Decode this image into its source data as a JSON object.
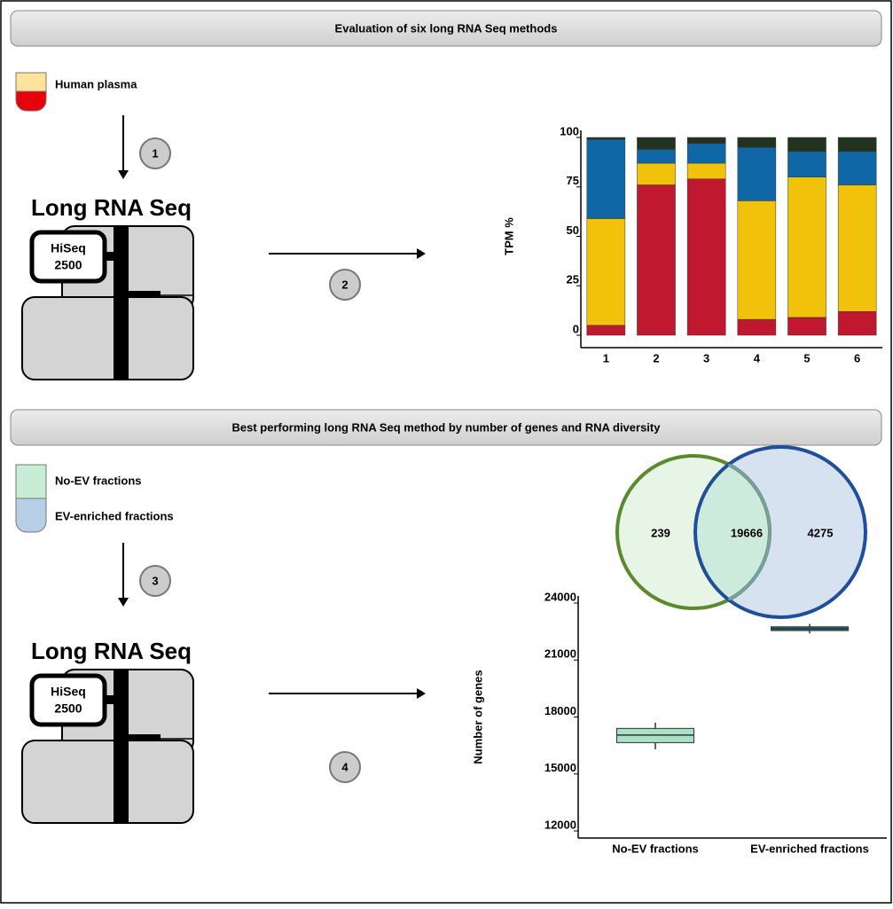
{
  "sections": [
    {
      "title": "Evaluation of six long RNA Seq methods"
    },
    {
      "title": "Best performing long RNA Seq method by number of genes and RNA diversity"
    }
  ],
  "panel1": {
    "sample_label": "Human plasma",
    "steps": [
      "1",
      "2"
    ],
    "method_title": "Long RNA Seq",
    "instrument": [
      "HiSeq",
      "2500"
    ]
  },
  "panel2": {
    "sample_labels": [
      "No-EV fractions",
      "EV-enriched fractions"
    ],
    "steps": [
      "3",
      "4"
    ],
    "method_title": "Long RNA Seq",
    "instrument": [
      "HiSeq",
      "2500"
    ]
  },
  "venn": {
    "counts": [
      "239",
      "19666",
      "4275"
    ],
    "colors": [
      "#5a8a2c",
      "#1f4e9a"
    ]
  },
  "chart_data": [
    {
      "type": "bar",
      "stacked": true,
      "y_label": "TPM %",
      "categories": [
        "1",
        "2",
        "3",
        "4",
        "5",
        "6"
      ],
      "series": [
        {
          "color": "#c0182f",
          "values": [
            5,
            76,
            79,
            8,
            9,
            12
          ]
        },
        {
          "color": "#f0c20a",
          "values": [
            54,
            11,
            8,
            60,
            71,
            64
          ]
        },
        {
          "color": "#0f67a6",
          "values": [
            40,
            7,
            10,
            27,
            13,
            17
          ]
        },
        {
          "color": "#22331f",
          "values": [
            1,
            6,
            3,
            5,
            7,
            7
          ]
        }
      ],
      "ylim": [
        0,
        100
      ],
      "yticks": [
        0,
        25,
        50,
        75,
        100
      ]
    },
    {
      "type": "box",
      "y_label": "Number of genes",
      "categories": [
        "No-EV fractions",
        "EV-enriched fractions"
      ],
      "boxes": [
        {
          "color": "#a8e0c8",
          "whisker_low": 16300,
          "q1": 16650,
          "median": 17050,
          "q3": 17400,
          "whisker_high": 17700
        },
        {
          "color": "#1d6f80",
          "whisker_low": 22400,
          "q1": 22550,
          "median": 22650,
          "q3": 22750,
          "whisker_high": 22900
        }
      ],
      "ylim": [
        12000,
        24000
      ],
      "yticks": [
        12000,
        15000,
        18000,
        21000,
        24000
      ]
    }
  ]
}
